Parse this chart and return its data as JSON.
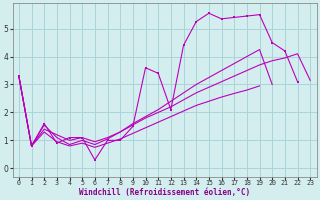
{
  "xlabel": "Windchill (Refroidissement éolien,°C)",
  "background_color": "#d4eef0",
  "grid_color": "#aad4d8",
  "line_color": "#bb00bb",
  "xlim": [
    -0.5,
    23.5
  ],
  "ylim": [
    -0.3,
    5.9
  ],
  "yticks": [
    0,
    1,
    2,
    3,
    4,
    5
  ],
  "xticks": [
    0,
    1,
    2,
    3,
    4,
    5,
    6,
    7,
    8,
    9,
    10,
    11,
    12,
    13,
    14,
    15,
    16,
    17,
    18,
    19,
    20,
    21,
    22,
    23
  ],
  "s1_x": [
    0,
    1,
    2,
    3,
    4,
    5,
    6,
    7,
    8,
    9,
    10,
    11,
    12,
    13,
    14,
    15,
    16,
    17,
    18,
    19,
    20,
    21,
    22
  ],
  "s1_y": [
    3.3,
    0.8,
    1.6,
    0.9,
    1.1,
    1.1,
    0.3,
    1.0,
    1.0,
    1.5,
    3.6,
    3.4,
    2.1,
    4.4,
    5.25,
    5.55,
    5.35,
    5.4,
    5.45,
    5.5,
    4.5,
    4.2,
    3.1
  ],
  "s2_x": [
    0,
    1,
    2,
    3,
    4,
    5,
    6,
    7,
    8,
    9,
    10,
    11,
    12,
    13,
    14,
    15,
    16,
    17,
    18,
    19,
    20,
    21,
    22,
    23
  ],
  "s2_y": [
    3.3,
    0.8,
    1.4,
    1.2,
    1.0,
    1.1,
    0.95,
    1.1,
    1.3,
    1.55,
    1.8,
    2.0,
    2.2,
    2.45,
    2.7,
    2.9,
    3.1,
    3.3,
    3.5,
    3.7,
    3.85,
    3.95,
    4.1,
    3.15
  ],
  "s3_x": [
    0,
    1,
    2,
    3,
    4,
    5,
    6,
    7,
    8,
    9,
    10,
    11,
    12,
    13,
    14,
    15,
    16,
    17,
    18,
    19,
    20
  ],
  "s3_y": [
    3.3,
    0.8,
    1.55,
    1.1,
    0.85,
    1.0,
    0.85,
    1.05,
    1.3,
    1.6,
    1.85,
    2.1,
    2.4,
    2.7,
    3.0,
    3.25,
    3.5,
    3.75,
    4.0,
    4.25,
    3.0
  ],
  "s4_x": [
    0,
    1,
    2,
    3,
    4,
    5,
    6,
    7,
    8,
    9,
    10,
    11,
    12,
    13,
    14,
    15,
    16,
    17,
    18,
    19
  ],
  "s4_y": [
    3.3,
    0.8,
    1.3,
    0.95,
    0.8,
    0.9,
    0.75,
    0.9,
    1.05,
    1.25,
    1.45,
    1.65,
    1.85,
    2.05,
    2.25,
    2.4,
    2.55,
    2.68,
    2.8,
    2.95
  ]
}
